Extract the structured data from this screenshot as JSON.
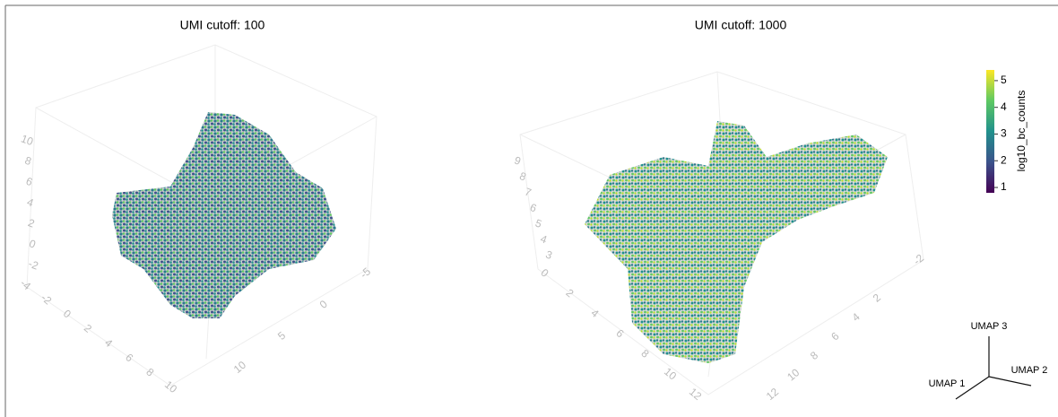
{
  "chart_data": [
    {
      "type": "scatter3d",
      "title": "UMI cutoff: 100",
      "zticks": [
        10,
        8,
        6,
        4,
        2,
        0,
        -2
      ],
      "xticks": [
        -4,
        -2,
        0,
        2,
        4,
        6,
        8,
        10
      ],
      "yticks": [
        10,
        5,
        0,
        -5
      ]
    },
    {
      "type": "scatter3d",
      "title": "UMI cutoff: 1000",
      "zticks": [
        9,
        8,
        7,
        6,
        5,
        4,
        3
      ],
      "xticks": [
        0,
        2,
        4,
        6,
        8,
        10,
        12
      ],
      "yticks": [
        12,
        10,
        8,
        6,
        4,
        2,
        -2
      ]
    }
  ],
  "colorbar": {
    "title": "log10_bc_counts",
    "clim": [
      0.8,
      5.4
    ],
    "ticks": [
      1,
      2,
      3,
      4,
      5
    ],
    "colorscale": "viridis"
  },
  "axes_legend": {
    "x": "UMAP 1",
    "y": "UMAP 2",
    "z": "UMAP 3"
  }
}
